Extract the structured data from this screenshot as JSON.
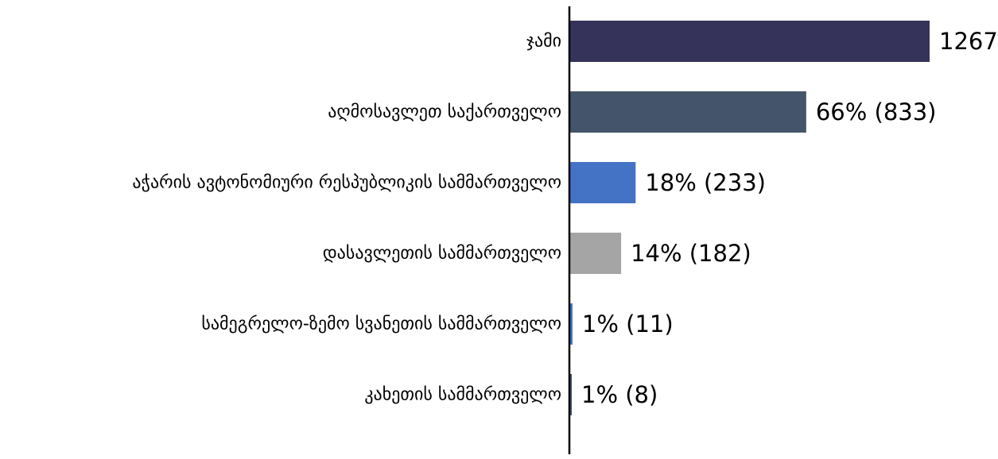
{
  "chart_data": {
    "type": "bar",
    "orientation": "horizontal",
    "categories": [
      "ჯამი",
      "აღმოსავლეთ საქართველო",
      "აჭარის ავტონომიური რესპუბლიკის სამმართველო",
      "დასავლეთის სამმართველო",
      "სამეგრელო-ზემო სვანეთის სამმართველო",
      "კახეთის სამმართველო"
    ],
    "values": [
      1267,
      833,
      233,
      182,
      11,
      8
    ],
    "data_labels": [
      "1267",
      "66% (833)",
      "18% (233)",
      "14% (182)",
      "1% (11)",
      "1% (8)"
    ],
    "colors": [
      "#35335a",
      "#44546a",
      "#4472c4",
      "#a5a5a5",
      "#4472c4",
      "#44546a"
    ],
    "xlim": [
      0,
      1267
    ],
    "grid": false,
    "legend": "none"
  }
}
